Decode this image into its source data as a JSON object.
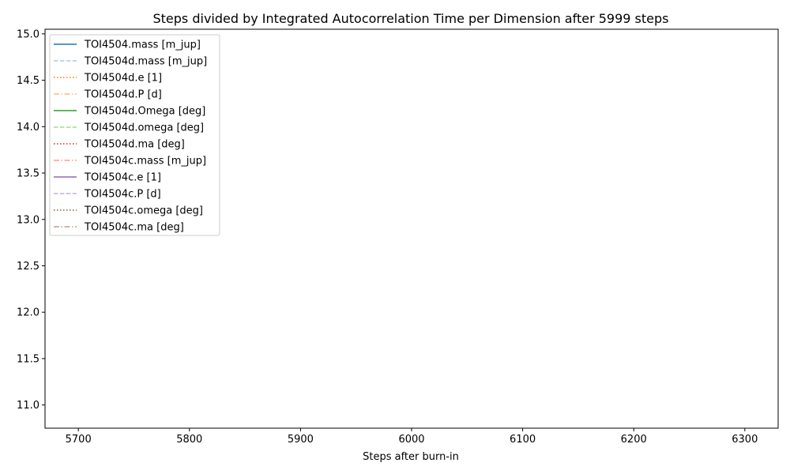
{
  "chart_data": {
    "type": "line",
    "title": "Steps divided by Integrated Autocorrelation Time per Dimension after 5999 steps",
    "xlabel": "Steps after burn-in",
    "ylabel": "",
    "xlim": [
      5670,
      6330
    ],
    "ylim": [
      10.75,
      15.05
    ],
    "xticks": [
      {
        "value": 5700,
        "label": "5700"
      },
      {
        "value": 5800,
        "label": "5800"
      },
      {
        "value": 5900,
        "label": "5900"
      },
      {
        "value": 6000,
        "label": "6000"
      },
      {
        "value": 6100,
        "label": "6100"
      },
      {
        "value": 6200,
        "label": "6200"
      },
      {
        "value": 6300,
        "label": "6300"
      }
    ],
    "yticks": [
      {
        "value": 11.0,
        "label": "11.0"
      },
      {
        "value": 11.5,
        "label": "11.5"
      },
      {
        "value": 12.0,
        "label": "12.0"
      },
      {
        "value": 12.5,
        "label": "12.5"
      },
      {
        "value": 13.0,
        "label": "13.0"
      },
      {
        "value": 13.5,
        "label": "13.5"
      },
      {
        "value": 14.0,
        "label": "14.0"
      },
      {
        "value": 14.5,
        "label": "14.5"
      },
      {
        "value": 15.0,
        "label": "15.0"
      }
    ],
    "grid": false,
    "legend_position": "top-left",
    "series": [
      {
        "name": "TOI4504.mass [m_jup]",
        "color": "#1f77b4",
        "dash": "solid",
        "x": [],
        "y": []
      },
      {
        "name": "TOI4504d.mass [m_jup]",
        "color": "#aec7e8",
        "dash": "dashed",
        "x": [],
        "y": []
      },
      {
        "name": "TOI4504d.e [1]",
        "color": "#ff7f0e",
        "dash": "dotted",
        "x": [],
        "y": []
      },
      {
        "name": "TOI4504d.P [d]",
        "color": "#ffbb78",
        "dash": "dashdot",
        "x": [],
        "y": []
      },
      {
        "name": "TOI4504d.Omega [deg]",
        "color": "#2ca02c",
        "dash": "solid",
        "x": [],
        "y": []
      },
      {
        "name": "TOI4504d.omega [deg]",
        "color": "#98df8a",
        "dash": "dashed",
        "x": [],
        "y": []
      },
      {
        "name": "TOI4504d.ma [deg]",
        "color": "#d62728",
        "dash": "dotted",
        "x": [],
        "y": []
      },
      {
        "name": "TOI4504c.mass [m_jup]",
        "color": "#ff9896",
        "dash": "dashdot",
        "x": [],
        "y": []
      },
      {
        "name": "TOI4504c.e [1]",
        "color": "#9467bd",
        "dash": "solid",
        "x": [],
        "y": []
      },
      {
        "name": "TOI4504c.P [d]",
        "color": "#c5b0d5",
        "dash": "dashed",
        "x": [],
        "y": []
      },
      {
        "name": "TOI4504c.omega [deg]",
        "color": "#8c564b",
        "dash": "dotted",
        "x": [],
        "y": []
      },
      {
        "name": "TOI4504c.ma [deg]",
        "color": "#c49c94",
        "dash": "dashdot",
        "x": [],
        "y": []
      }
    ]
  }
}
